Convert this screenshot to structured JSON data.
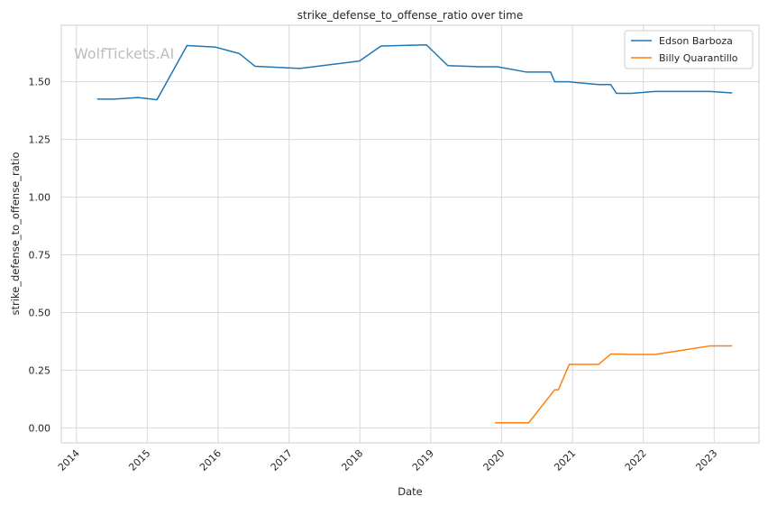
{
  "chart_data": {
    "type": "line",
    "title": "strike_defense_to_offense_ratio over time",
    "xlabel": "Date",
    "ylabel": "strike_defense_to_offense_ratio",
    "watermark": "WolfTickets.AI",
    "xlim": [
      "2013-10-15",
      "2023-08-20"
    ],
    "ylim": [
      -0.065,
      1.745
    ],
    "x_ticks": [
      "2014",
      "2015",
      "2016",
      "2017",
      "2018",
      "2019",
      "2020",
      "2021",
      "2022",
      "2023"
    ],
    "y_ticks": [
      "0.00",
      "0.25",
      "0.50",
      "0.75",
      "1.00",
      "1.25",
      "1.50"
    ],
    "grid": true,
    "legend_position": "top-right",
    "series": [
      {
        "name": "Edson Barboza",
        "color": "#1f77b4",
        "x": [
          "2014-04-20",
          "2014-07-15",
          "2014-11-15",
          "2015-02-20",
          "2015-07-25",
          "2015-12-20",
          "2016-04-20",
          "2016-07-10",
          "2017-02-25",
          "2017-12-30",
          "2018-04-20",
          "2018-12-10",
          "2019-03-30",
          "2019-09-10",
          "2019-12-10",
          "2020-05-10",
          "2020-09-10",
          "2020-10-01",
          "2020-12-10",
          "2021-05-15",
          "2021-07-17",
          "2021-08-15",
          "2021-11-01",
          "2022-03-01",
          "2022-12-10",
          "2023-04-01"
        ],
        "y": [
          1.425,
          1.425,
          1.432,
          1.422,
          1.657,
          1.65,
          1.622,
          1.567,
          1.558,
          1.59,
          1.655,
          1.66,
          1.57,
          1.565,
          1.565,
          1.542,
          1.542,
          1.5,
          1.5,
          1.488,
          1.488,
          1.45,
          1.45,
          1.458,
          1.458,
          1.452
        ]
      },
      {
        "name": "Billy Quarantillo",
        "color": "#ff7f0e",
        "x": [
          "2019-12-01",
          "2020-05-20",
          "2020-10-01",
          "2020-10-20",
          "2020-12-15",
          "2021-05-15",
          "2021-07-17",
          "2021-08-20",
          "2021-11-01",
          "2022-03-01",
          "2022-12-10",
          "2023-04-01"
        ],
        "y": [
          0.022,
          0.022,
          0.165,
          0.165,
          0.275,
          0.275,
          0.32,
          0.32,
          0.318,
          0.318,
          0.355,
          0.355
        ]
      }
    ]
  }
}
